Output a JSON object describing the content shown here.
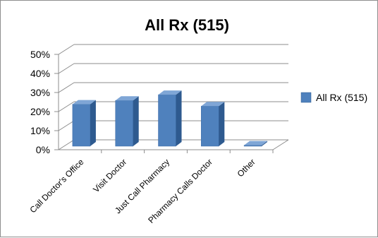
{
  "chart_data": {
    "type": "bar",
    "title": "All Rx (515)",
    "categories": [
      "Call Doctor's Office",
      "Visit Doctor",
      "Just Call Pharmacy",
      "Pharmacy Calls Doctor",
      "Other"
    ],
    "series": [
      {
        "name": "All Rx (515)",
        "values": [
          22,
          24,
          27,
          21,
          0.5
        ]
      }
    ],
    "ylim": [
      0,
      50
    ],
    "yticks": [
      "0%",
      "10%",
      "20%",
      "30%",
      "40%",
      "50%"
    ],
    "grid": true,
    "legend_position": "right",
    "colors": {
      "bar_front": "#4F81BD",
      "bar_side": "#2E5A8F",
      "bar_top": "#7FA6D6",
      "grid": "#8C8C8C"
    }
  }
}
